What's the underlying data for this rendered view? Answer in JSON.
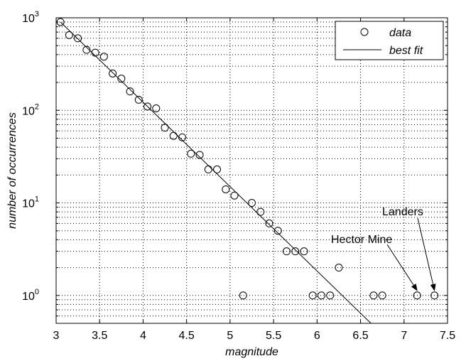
{
  "chart_data": {
    "type": "scatter",
    "xlabel": "magnitude",
    "ylabel": "number of occurrences",
    "xlim": [
      3,
      7.5
    ],
    "ylim": [
      0.5,
      1000
    ],
    "yscale": "log",
    "grid": true,
    "legend_position": "top-right",
    "x_ticks": [
      "3",
      "3.5",
      "4",
      "4.5",
      "5",
      "5.5",
      "6",
      "6.5",
      "7",
      "7.5"
    ],
    "y_ticks": [
      {
        "base": "10",
        "exp": "0"
      },
      {
        "base": "10",
        "exp": "1"
      },
      {
        "base": "10",
        "exp": "2"
      },
      {
        "base": "10",
        "exp": "3"
      }
    ],
    "series": [
      {
        "name": "data",
        "type": "scatter",
        "marker": "open-circle",
        "points": [
          [
            3.05,
            900
          ],
          [
            3.15,
            650
          ],
          [
            3.25,
            600
          ],
          [
            3.35,
            450
          ],
          [
            3.45,
            420
          ],
          [
            3.55,
            380
          ],
          [
            3.65,
            250
          ],
          [
            3.75,
            220
          ],
          [
            3.85,
            160
          ],
          [
            3.95,
            130
          ],
          [
            4.05,
            110
          ],
          [
            4.15,
            105
          ],
          [
            4.25,
            65
          ],
          [
            4.35,
            53
          ],
          [
            4.45,
            51
          ],
          [
            4.55,
            34
          ],
          [
            4.65,
            33
          ],
          [
            4.75,
            23
          ],
          [
            4.85,
            23
          ],
          [
            4.95,
            14
          ],
          [
            5.05,
            12
          ],
          [
            5.15,
            1
          ],
          [
            5.25,
            10
          ],
          [
            5.35,
            8
          ],
          [
            5.45,
            6
          ],
          [
            5.55,
            5
          ],
          [
            5.65,
            3
          ],
          [
            5.75,
            3
          ],
          [
            5.85,
            3
          ],
          [
            5.95,
            1
          ],
          [
            6.05,
            1
          ],
          [
            6.15,
            1
          ],
          [
            6.25,
            2
          ],
          [
            6.65,
            1
          ],
          [
            6.75,
            1
          ],
          [
            7.15,
            1
          ],
          [
            7.35,
            1
          ]
        ]
      },
      {
        "name": "best fit",
        "type": "line",
        "points": [
          [
            3.05,
            900
          ],
          [
            6.62,
            0.5
          ]
        ]
      }
    ],
    "annotations": [
      {
        "text": "Landers",
        "target": [
          7.35,
          1
        ]
      },
      {
        "text": "Hector Mine",
        "target": [
          7.15,
          1
        ]
      }
    ]
  }
}
